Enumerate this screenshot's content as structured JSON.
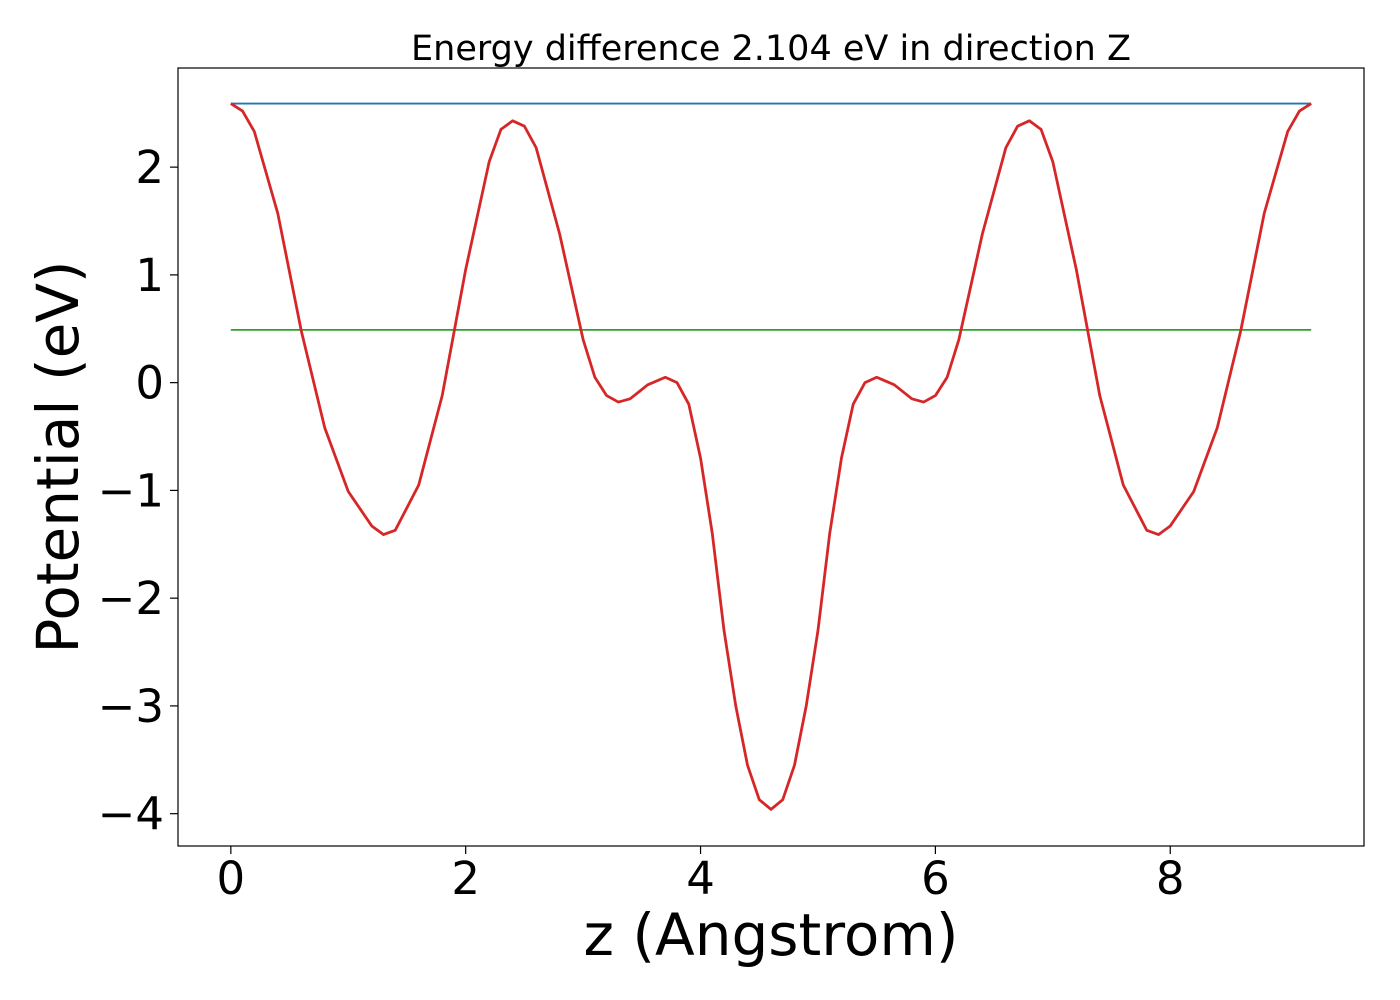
{
  "chart_data": {
    "type": "line",
    "title": "Energy difference 2.104 eV in direction Z",
    "xlabel": "z (Angstrom)",
    "ylabel": "Potential (eV)",
    "xlim": [
      -0.45,
      9.65
    ],
    "ylim": [
      -4.3,
      2.92
    ],
    "x_ticks": [
      0,
      2,
      4,
      6,
      8
    ],
    "y_ticks": [
      -4,
      -3,
      -2,
      -1,
      0,
      1,
      2
    ],
    "x_tick_labels": [
      "0",
      "2",
      "4",
      "6",
      "8"
    ],
    "y_tick_labels": [
      "−4",
      "−3",
      "−2",
      "−1",
      "0",
      "1",
      "2"
    ],
    "grid": false,
    "legend": "none",
    "series": [
      {
        "role": "potential",
        "color": "#d62728",
        "points": [
          [
            0.0,
            2.59
          ],
          [
            0.1,
            2.52
          ],
          [
            0.2,
            2.33
          ],
          [
            0.4,
            1.57
          ],
          [
            0.6,
            0.48
          ],
          [
            0.8,
            -0.42
          ],
          [
            1.0,
            -1.01
          ],
          [
            1.2,
            -1.33
          ],
          [
            1.3,
            -1.41
          ],
          [
            1.4,
            -1.37
          ],
          [
            1.6,
            -0.95
          ],
          [
            1.8,
            -0.12
          ],
          [
            2.0,
            1.05
          ],
          [
            2.2,
            2.05
          ],
          [
            2.3,
            2.35
          ],
          [
            2.4,
            2.43
          ],
          [
            2.5,
            2.38
          ],
          [
            2.6,
            2.18
          ],
          [
            2.8,
            1.38
          ],
          [
            3.0,
            0.4
          ],
          [
            3.1,
            0.05
          ],
          [
            3.2,
            -0.12
          ],
          [
            3.3,
            -0.18
          ],
          [
            3.4,
            -0.15
          ],
          [
            3.55,
            -0.02
          ],
          [
            3.7,
            0.05
          ],
          [
            3.8,
            0.0
          ],
          [
            3.9,
            -0.2
          ],
          [
            4.0,
            -0.7
          ],
          [
            4.1,
            -1.4
          ],
          [
            4.2,
            -2.3
          ],
          [
            4.3,
            -3.0
          ],
          [
            4.4,
            -3.55
          ],
          [
            4.5,
            -3.87
          ],
          [
            4.6,
            -3.96
          ],
          [
            4.7,
            -3.87
          ],
          [
            4.8,
            -3.55
          ],
          [
            4.9,
            -3.0
          ],
          [
            5.0,
            -2.3
          ],
          [
            5.1,
            -1.4
          ],
          [
            5.2,
            -0.7
          ],
          [
            5.3,
            -0.2
          ],
          [
            5.4,
            0.0
          ],
          [
            5.5,
            0.05
          ],
          [
            5.65,
            -0.02
          ],
          [
            5.8,
            -0.15
          ],
          [
            5.9,
            -0.18
          ],
          [
            6.0,
            -0.12
          ],
          [
            6.1,
            0.05
          ],
          [
            6.2,
            0.4
          ],
          [
            6.4,
            1.38
          ],
          [
            6.6,
            2.18
          ],
          [
            6.7,
            2.38
          ],
          [
            6.8,
            2.43
          ],
          [
            6.9,
            2.35
          ],
          [
            7.0,
            2.05
          ],
          [
            7.2,
            1.05
          ],
          [
            7.4,
            -0.12
          ],
          [
            7.6,
            -0.95
          ],
          [
            7.8,
            -1.37
          ],
          [
            7.9,
            -1.41
          ],
          [
            8.0,
            -1.33
          ],
          [
            8.2,
            -1.01
          ],
          [
            8.4,
            -0.42
          ],
          [
            8.6,
            0.48
          ],
          [
            8.8,
            1.57
          ],
          [
            9.0,
            2.33
          ],
          [
            9.1,
            2.52
          ],
          [
            9.2,
            2.59
          ]
        ]
      },
      {
        "role": "upper-level",
        "color": "#1f77b4",
        "points": [
          [
            0.0,
            2.59
          ],
          [
            9.2,
            2.59
          ]
        ]
      },
      {
        "role": "lower-level",
        "color": "#2ca02c",
        "points": [
          [
            0.0,
            0.49
          ],
          [
            9.2,
            0.49
          ]
        ]
      }
    ]
  }
}
